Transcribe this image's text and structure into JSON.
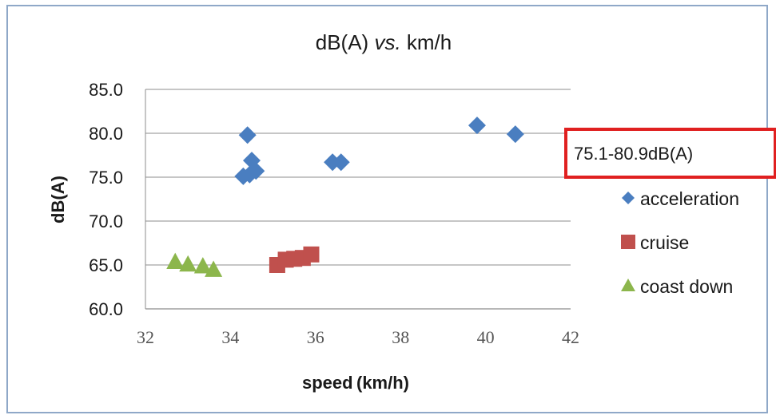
{
  "chart_data": {
    "type": "scatter",
    "title_parts": [
      "dB(A) ",
      "vs.",
      " km/h"
    ],
    "xlabel": "speed (km/h)",
    "ylabel": "dB(A)",
    "xlim": [
      32,
      42
    ],
    "ylim": [
      60,
      85
    ],
    "xticks": [
      32,
      34,
      36,
      38,
      40,
      42
    ],
    "xtick_labels": [
      "32",
      "34",
      "36",
      "38",
      "40",
      "42"
    ],
    "yticks": [
      60,
      65,
      70,
      75,
      80,
      85
    ],
    "ytick_labels": [
      "60.0",
      "65.0",
      "70.0",
      "75.0",
      "80.0",
      "85.0"
    ],
    "grid": "horizontal",
    "legend_position": "right",
    "annotation": "75.1-80.9dB(A)",
    "series": [
      {
        "name": "acceleration",
        "marker": "diamond",
        "color": "#4a7ec0",
        "points": [
          [
            34.4,
            79.8
          ],
          [
            34.5,
            76.9
          ],
          [
            34.6,
            75.7
          ],
          [
            34.3,
            75.1
          ],
          [
            34.45,
            75.3
          ],
          [
            36.4,
            76.7
          ],
          [
            36.6,
            76.7
          ],
          [
            39.8,
            80.9
          ],
          [
            40.7,
            79.9
          ]
        ]
      },
      {
        "name": "cruise",
        "marker": "square",
        "color": "#c0504d",
        "points": [
          [
            35.1,
            65.0
          ],
          [
            35.3,
            65.6
          ],
          [
            35.5,
            65.7
          ],
          [
            35.7,
            65.8
          ],
          [
            35.9,
            66.2
          ]
        ]
      },
      {
        "name": "coast down",
        "marker": "triangle",
        "color": "#8cb64c",
        "points": [
          [
            32.7,
            65.4
          ],
          [
            33.0,
            65.1
          ],
          [
            33.35,
            64.9
          ],
          [
            33.6,
            64.5
          ]
        ]
      }
    ]
  },
  "colors": {
    "annotation_border": "#e02020",
    "gridline": "#8c8c8c",
    "frame": "#8fa8c8"
  }
}
